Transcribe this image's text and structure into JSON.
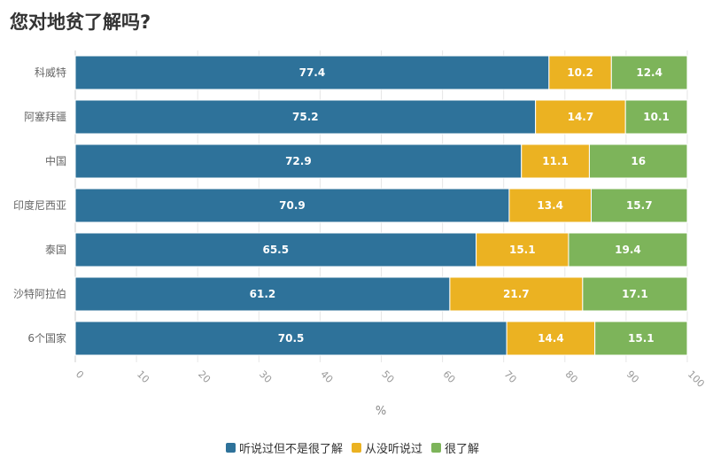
{
  "chart_data": {
    "type": "bar",
    "orientation": "horizontal",
    "stacked": true,
    "title": "您对地贫了解吗?",
    "categories": [
      "科威特",
      "阿塞拜疆",
      "中国",
      "印度尼西亚",
      "泰国",
      "沙特阿拉伯",
      "6个国家"
    ],
    "series": [
      {
        "name": "听说过但不是很了解",
        "color": "#2e729a",
        "values": [
          77.4,
          75.2,
          72.9,
          70.9,
          65.5,
          61.2,
          70.5
        ]
      },
      {
        "name": "从没听说过",
        "color": "#ebb222",
        "values": [
          10.2,
          14.7,
          11.1,
          13.4,
          15.1,
          21.7,
          14.4
        ]
      },
      {
        "name": "很了解",
        "color": "#7db45a",
        "values": [
          12.4,
          10.1,
          16,
          15.7,
          19.4,
          17.1,
          15.1
        ]
      }
    ],
    "xlabel": "%",
    "ylabel": "",
    "xlim": [
      0,
      100
    ],
    "xticks": [
      0,
      10,
      20,
      30,
      40,
      50,
      60,
      70,
      80,
      90,
      100
    ],
    "legend_position": "bottom",
    "grid": true
  }
}
